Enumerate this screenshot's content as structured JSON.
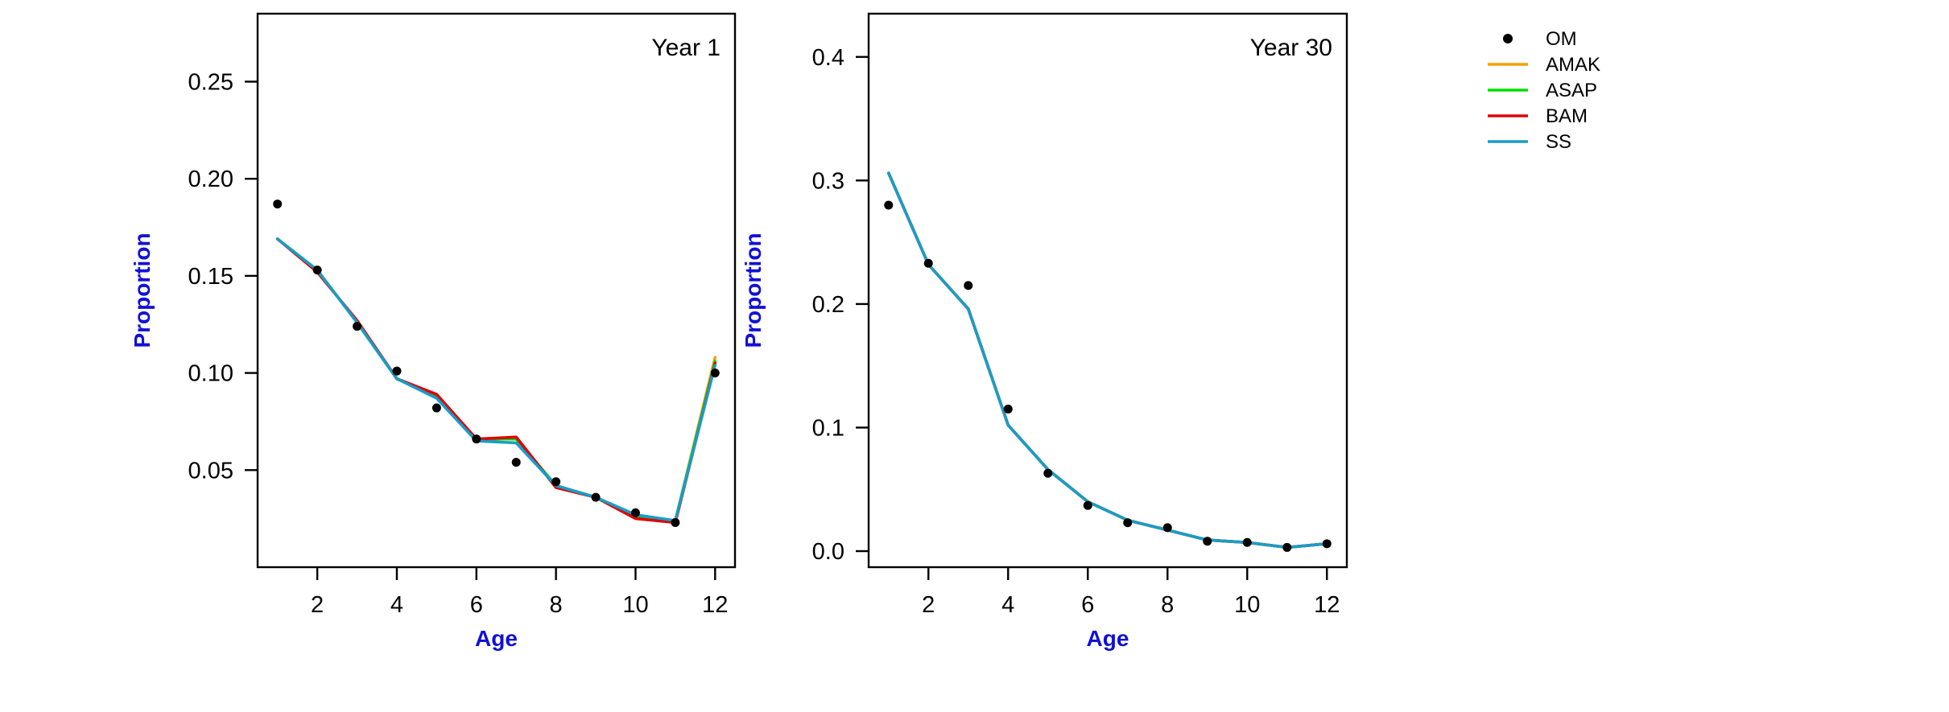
{
  "chart_data": [
    {
      "type": "line",
      "title": "Year 1",
      "xlabel": "Age",
      "ylabel": "Proportion",
      "x": [
        1,
        2,
        3,
        4,
        5,
        6,
        7,
        8,
        9,
        10,
        11,
        12
      ],
      "xlim": [
        0.5,
        12.5
      ],
      "ylim": [
        0.0,
        0.285
      ],
      "xticks": [
        2,
        4,
        6,
        8,
        10,
        12
      ],
      "xtick_labels": [
        "2",
        "4",
        "6",
        "8",
        "10",
        "12"
      ],
      "yticks": [
        0.05,
        0.1,
        0.15,
        0.2,
        0.25
      ],
      "ytick_labels": [
        "0.05",
        "0.10",
        "0.15",
        "0.20",
        "0.25"
      ],
      "grid": false,
      "points": {
        "name": "OM",
        "values": [
          0.187,
          0.153,
          0.124,
          0.101,
          0.082,
          0.066,
          0.054,
          0.044,
          0.036,
          0.028,
          0.023,
          0.1
        ]
      },
      "series": [
        {
          "name": "AMAK",
          "color": "#f5a000",
          "values": [
            0.169,
            0.153,
            0.126,
            0.097,
            0.088,
            0.066,
            0.066,
            0.042,
            0.036,
            0.026,
            0.024,
            0.108
          ]
        },
        {
          "name": "ASAP",
          "color": "#00e000",
          "values": [
            0.169,
            0.153,
            0.126,
            0.097,
            0.088,
            0.066,
            0.066,
            0.042,
            0.036,
            0.026,
            0.024,
            0.106
          ]
        },
        {
          "name": "BAM",
          "color": "#e00000",
          "values": [
            0.169,
            0.152,
            0.127,
            0.097,
            0.089,
            0.066,
            0.067,
            0.041,
            0.036,
            0.025,
            0.023,
            0.105
          ]
        },
        {
          "name": "SS",
          "color": "#1a9cc8",
          "values": [
            0.169,
            0.153,
            0.126,
            0.097,
            0.087,
            0.065,
            0.064,
            0.042,
            0.036,
            0.027,
            0.024,
            0.104
          ]
        }
      ]
    },
    {
      "type": "line",
      "title": "Year 30",
      "xlabel": "Age",
      "ylabel": "Proportion",
      "x": [
        1,
        2,
        3,
        4,
        5,
        6,
        7,
        8,
        9,
        10,
        11,
        12
      ],
      "xlim": [
        0.5,
        12.5
      ],
      "ylim": [
        -0.013,
        0.435
      ],
      "xticks": [
        2,
        4,
        6,
        8,
        10,
        12
      ],
      "xtick_labels": [
        "2",
        "4",
        "6",
        "8",
        "10",
        "12"
      ],
      "yticks": [
        0.0,
        0.1,
        0.2,
        0.3,
        0.4
      ],
      "ytick_labels": [
        "0.0",
        "0.1",
        "0.2",
        "0.3",
        "0.4"
      ],
      "grid": false,
      "points": {
        "name": "OM",
        "values": [
          0.28,
          0.233,
          0.215,
          0.115,
          0.063,
          0.037,
          0.023,
          0.019,
          0.008,
          0.007,
          0.003,
          0.006
        ]
      },
      "series": [
        {
          "name": "AMAK",
          "color": "#f5a000",
          "values": [
            0.306,
            0.232,
            0.196,
            0.102,
            0.066,
            0.04,
            0.025,
            0.017,
            0.009,
            0.007,
            0.003,
            0.006
          ]
        },
        {
          "name": "ASAP",
          "color": "#00e000",
          "values": [
            0.306,
            0.232,
            0.196,
            0.102,
            0.066,
            0.04,
            0.025,
            0.017,
            0.009,
            0.007,
            0.003,
            0.006
          ]
        },
        {
          "name": "BAM",
          "color": "#e00000",
          "values": [
            0.306,
            0.232,
            0.196,
            0.102,
            0.066,
            0.04,
            0.025,
            0.017,
            0.009,
            0.007,
            0.003,
            0.006
          ]
        },
        {
          "name": "SS",
          "color": "#1a9cc8",
          "values": [
            0.306,
            0.232,
            0.196,
            0.102,
            0.066,
            0.04,
            0.025,
            0.017,
            0.009,
            0.007,
            0.003,
            0.006
          ]
        }
      ]
    }
  ],
  "legend": {
    "placement": "right",
    "items": [
      {
        "label": "OM",
        "kind": "point",
        "color": "#000000"
      },
      {
        "label": "AMAK",
        "kind": "line",
        "color": "#f5a000"
      },
      {
        "label": "ASAP",
        "kind": "line",
        "color": "#00e000"
      },
      {
        "label": "BAM",
        "kind": "line",
        "color": "#e00000"
      },
      {
        "label": "SS",
        "kind": "line",
        "color": "#1a9cc8"
      }
    ]
  }
}
